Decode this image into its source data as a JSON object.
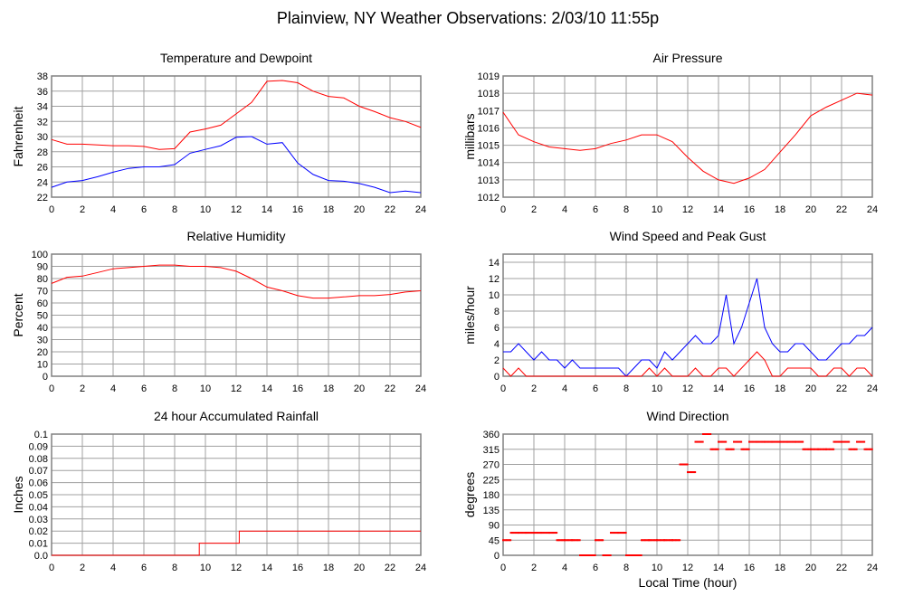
{
  "title": "Plainview, NY Weather Observations: 2/03/10 11:55p",
  "xlabel": "Local Time (hour)",
  "colors": {
    "red": "#ff0000",
    "blue": "#0000ff",
    "grid": "#a0a0a0",
    "border": "#808080"
  },
  "chart_data": [
    {
      "type": "line",
      "title": "Temperature and Dewpoint",
      "ylabel": "Fahrenheit",
      "xlim": [
        0,
        24
      ],
      "ylim": [
        22,
        38
      ],
      "xticks": [
        "0",
        "2",
        "4",
        "6",
        "8",
        "10",
        "12",
        "14",
        "16",
        "18",
        "20",
        "22",
        "24"
      ],
      "yticks": [
        "22",
        "24",
        "26",
        "28",
        "30",
        "32",
        "34",
        "36",
        "38"
      ],
      "x": [
        0,
        1,
        2,
        3,
        4,
        5,
        6,
        7,
        8,
        9,
        10,
        11,
        12,
        13,
        14,
        15,
        16,
        17,
        18,
        19,
        20,
        21,
        22,
        23,
        24
      ],
      "series": [
        {
          "name": "Temperature",
          "color": "#ff0000",
          "values": [
            29.6,
            29.0,
            29.0,
            28.9,
            28.8,
            28.8,
            28.7,
            28.3,
            28.4,
            30.6,
            31.0,
            31.5,
            33.0,
            34.5,
            37.3,
            37.4,
            37.1,
            36.0,
            35.3,
            35.1,
            34.0,
            33.3,
            32.5,
            32.0,
            31.2
          ]
        },
        {
          "name": "Dewpoint",
          "color": "#0000ff",
          "values": [
            23.3,
            24.0,
            24.2,
            24.7,
            25.3,
            25.8,
            26.0,
            26.0,
            26.3,
            27.8,
            28.3,
            28.8,
            29.9,
            30.0,
            29.0,
            29.2,
            26.5,
            25.0,
            24.2,
            24.1,
            23.8,
            23.3,
            22.6,
            22.8,
            22.6
          ]
        }
      ]
    },
    {
      "type": "line",
      "title": "Air Pressure",
      "ylabel": "millibars",
      "xlim": [
        0,
        24
      ],
      "ylim": [
        1012,
        1019
      ],
      "xticks": [
        "0",
        "2",
        "4",
        "6",
        "8",
        "10",
        "12",
        "14",
        "16",
        "18",
        "20",
        "22",
        "24"
      ],
      "yticks": [
        "1012",
        "1013",
        "1014",
        "1015",
        "1016",
        "1017",
        "1018",
        "1019"
      ],
      "x": [
        0,
        1,
        2,
        3,
        4,
        5,
        6,
        7,
        8,
        9,
        10,
        11,
        12,
        13,
        14,
        15,
        16,
        17,
        18,
        19,
        20,
        21,
        22,
        23,
        24
      ],
      "series": [
        {
          "name": "Pressure",
          "color": "#ff0000",
          "values": [
            1016.9,
            1015.6,
            1015.2,
            1014.9,
            1014.8,
            1014.7,
            1014.8,
            1015.1,
            1015.3,
            1015.6,
            1015.6,
            1015.2,
            1014.3,
            1013.5,
            1013.0,
            1012.8,
            1013.1,
            1013.6,
            1014.6,
            1015.6,
            1016.7,
            1017.2,
            1017.6,
            1018.0,
            1017.9
          ]
        }
      ]
    },
    {
      "type": "line",
      "title": "Relative Humidity",
      "ylabel": "Percent",
      "xlim": [
        0,
        24
      ],
      "ylim": [
        0,
        100
      ],
      "xticks": [
        "0",
        "2",
        "4",
        "6",
        "8",
        "10",
        "12",
        "14",
        "16",
        "18",
        "20",
        "22",
        "24"
      ],
      "yticks": [
        "0",
        "10",
        "20",
        "30",
        "40",
        "50",
        "60",
        "70",
        "80",
        "90",
        "100"
      ],
      "x": [
        0,
        1,
        2,
        3,
        4,
        5,
        6,
        7,
        8,
        9,
        10,
        11,
        12,
        13,
        14,
        15,
        16,
        17,
        18,
        19,
        20,
        21,
        22,
        23,
        24
      ],
      "series": [
        {
          "name": "Humidity",
          "color": "#ff0000",
          "values": [
            76,
            81,
            82,
            85,
            88,
            89,
            90,
            91,
            91,
            90,
            90,
            89,
            86,
            80,
            73,
            70,
            66,
            64,
            64,
            65,
            66,
            66,
            67,
            69,
            70
          ]
        }
      ]
    },
    {
      "type": "line",
      "title": "Wind Speed and Peak Gust",
      "ylabel": "miles/hour",
      "xlim": [
        0,
        24
      ],
      "ylim": [
        0,
        15
      ],
      "xticks": [
        "0",
        "2",
        "4",
        "6",
        "8",
        "10",
        "12",
        "14",
        "16",
        "18",
        "20",
        "22",
        "24"
      ],
      "yticks": [
        "0",
        "2",
        "4",
        "6",
        "8",
        "10",
        "12",
        "14"
      ],
      "x": [
        0,
        0.5,
        1,
        1.5,
        2,
        2.5,
        3,
        3.5,
        4,
        4.5,
        5,
        5.5,
        6,
        6.5,
        7,
        7.5,
        8,
        8.5,
        9,
        9.5,
        10,
        10.5,
        11,
        11.5,
        12,
        12.5,
        13,
        13.5,
        14,
        14.5,
        15,
        15.5,
        16,
        16.5,
        17,
        17.5,
        18,
        18.5,
        19,
        19.5,
        20,
        20.5,
        21,
        21.5,
        22,
        22.5,
        23,
        23.5,
        24
      ],
      "series": [
        {
          "name": "Peak Gust",
          "color": "#0000ff",
          "values": [
            3,
            3,
            4,
            3,
            2,
            3,
            2,
            2,
            1,
            2,
            1,
            1,
            1,
            1,
            1,
            1,
            0,
            1,
            2,
            2,
            1,
            3,
            2,
            3,
            4,
            5,
            4,
            4,
            5,
            10,
            4,
            6,
            9,
            12,
            6,
            4,
            3,
            3,
            4,
            4,
            3,
            2,
            2,
            3,
            4,
            4,
            5,
            5,
            6
          ]
        },
        {
          "name": "Wind Speed",
          "color": "#ff0000",
          "values": [
            1,
            0,
            1,
            0,
            0,
            0,
            0,
            0,
            0,
            0,
            0,
            0,
            0,
            0,
            0,
            0,
            0,
            0,
            0,
            1,
            0,
            1,
            0,
            0,
            0,
            1,
            0,
            0,
            1,
            1,
            0,
            1,
            2,
            3,
            2,
            0,
            0,
            1,
            1,
            1,
            1,
            0,
            0,
            1,
            1,
            0,
            1,
            1,
            0
          ]
        }
      ]
    },
    {
      "type": "line",
      "title": "24 hour Accumulated Rainfall",
      "ylabel": "Inches",
      "xlim": [
        0,
        24
      ],
      "ylim": [
        0,
        0.1
      ],
      "xticks": [
        "0",
        "2",
        "4",
        "6",
        "8",
        "10",
        "12",
        "14",
        "16",
        "18",
        "20",
        "22",
        "24"
      ],
      "yticks": [
        "0.0",
        "0.01",
        "0.02",
        "0.03",
        "0.04",
        "0.05",
        "0.06",
        "0.07",
        "0.08",
        "0.09",
        "0.1"
      ],
      "x": [
        0,
        9.6,
        9.6,
        12.2,
        12.2,
        24
      ],
      "series": [
        {
          "name": "Rainfall",
          "color": "#ff0000",
          "values": [
            0,
            0,
            0.01,
            0.01,
            0.02,
            0.02
          ]
        }
      ]
    },
    {
      "type": "scatter",
      "title": "Wind Direction",
      "ylabel": "degrees",
      "xlim": [
        0,
        24
      ],
      "ylim": [
        0,
        360
      ],
      "xticks": [
        "0",
        "2",
        "4",
        "6",
        "8",
        "10",
        "12",
        "14",
        "16",
        "18",
        "20",
        "22",
        "24"
      ],
      "yticks": [
        "0",
        "45",
        "90",
        "135",
        "180",
        "225",
        "270",
        "315",
        "360"
      ],
      "x": [
        0,
        0.5,
        1,
        1.5,
        2,
        2.5,
        3,
        3.5,
        4,
        4.5,
        5,
        5.5,
        6,
        6.5,
        7,
        7.5,
        8,
        8.5,
        9,
        9.5,
        10,
        10.5,
        11,
        11.5,
        12,
        12.5,
        13,
        13.5,
        14,
        14.5,
        15,
        15.5,
        16,
        16.5,
        17,
        17.5,
        18,
        18.5,
        19,
        19.5,
        20,
        20.5,
        21,
        21.5,
        22,
        22.5,
        23,
        23.5
      ],
      "series": [
        {
          "name": "Direction",
          "color": "#ff0000",
          "values": [
            45,
            67,
            67,
            67,
            67,
            67,
            67,
            45,
            45,
            45,
            0,
            0,
            45,
            0,
            67,
            67,
            0,
            0,
            45,
            45,
            45,
            45,
            45,
            270,
            247,
            337,
            360,
            315,
            337,
            315,
            337,
            315,
            337,
            337,
            337,
            337,
            337,
            337,
            337,
            315,
            315,
            315,
            315,
            337,
            337,
            315,
            337,
            315
          ]
        }
      ]
    }
  ]
}
